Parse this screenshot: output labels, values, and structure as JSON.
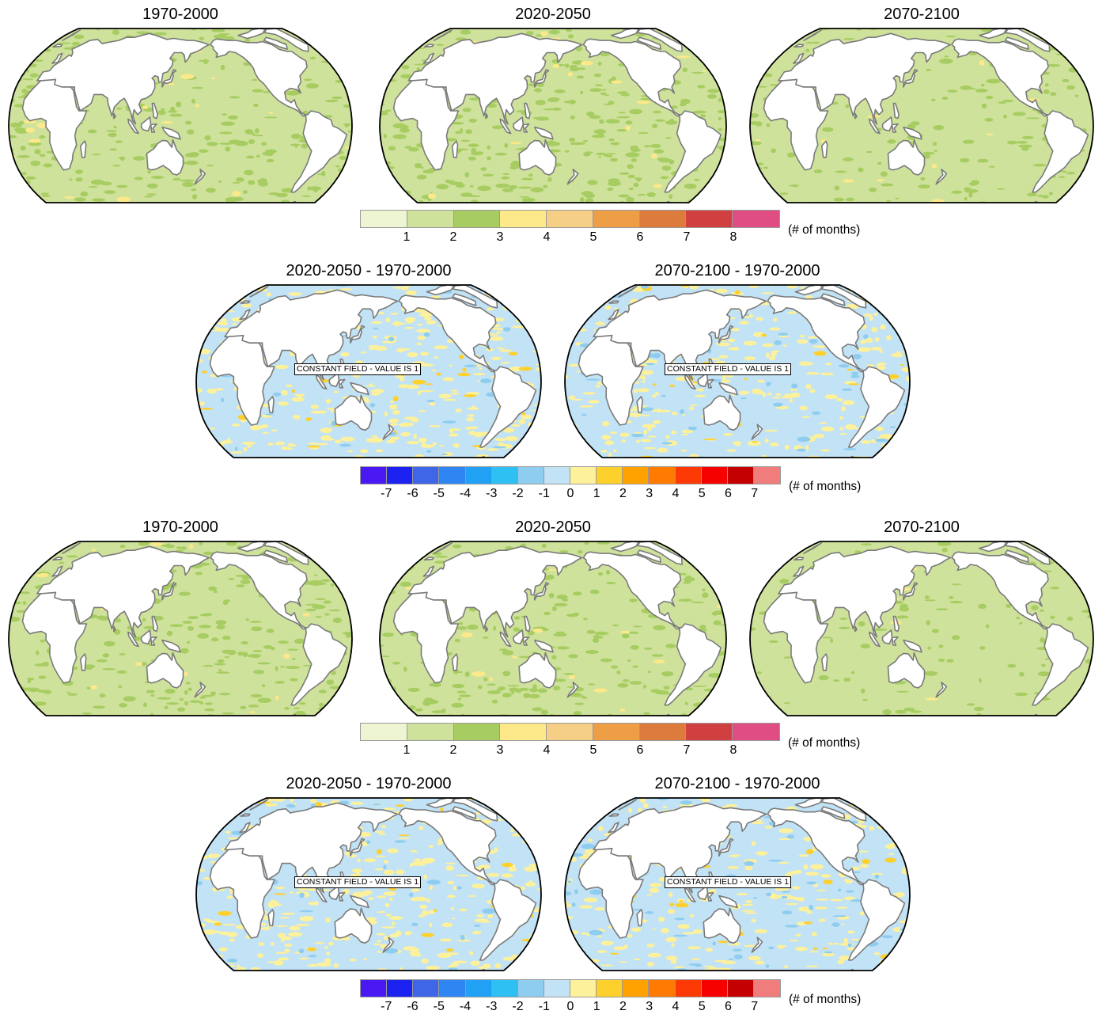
{
  "colors": {
    "land": "#ffffff",
    "coast": "#7a7a7a",
    "outline": "#000000"
  },
  "absolute_scale": {
    "colors": [
      "#eef5d2",
      "#cfe29c",
      "#a7cd62",
      "#fee98a",
      "#f6cf86",
      "#ee9f45",
      "#dc7b3c",
      "#d14040",
      "#e04d82"
    ],
    "ticks": [
      "1",
      "2",
      "3",
      "4",
      "5",
      "6",
      "7",
      "8"
    ],
    "units": "(# of months)"
  },
  "diff_scale": {
    "colors": [
      "#4a18f2",
      "#1c22ef",
      "#3f66e6",
      "#2f86f3",
      "#21a1f4",
      "#2fc0f3",
      "#8ecdef",
      "#c2e2f5",
      "#fef19b",
      "#fed02c",
      "#ffa200",
      "#ff7a00",
      "#fd3a05",
      "#f70000",
      "#c40000",
      "#f07c7c"
    ],
    "ticks": [
      "-7",
      "-6",
      "-5",
      "-4",
      "-3",
      "-2",
      "-1",
      "0",
      "1",
      "2",
      "3",
      "4",
      "5",
      "6",
      "7"
    ],
    "units": "(# of months)"
  },
  "constant_field_label": "CONSTANT FIELD - VALUE IS 1",
  "sections": [
    {
      "kind": "absolute",
      "panels": [
        {
          "title": "1970-2000",
          "ocean_base": "#cfe29c",
          "patches": [
            {
              "color": "#a7cd62",
              "share": 0.35
            },
            {
              "color": "#fee98a",
              "share": 0.03
            }
          ]
        },
        {
          "title": "2020-2050",
          "ocean_base": "#cfe29c",
          "patches": [
            {
              "color": "#a7cd62",
              "share": 0.4
            },
            {
              "color": "#fee98a",
              "share": 0.03
            }
          ]
        },
        {
          "title": "2070-2100",
          "ocean_base": "#cfe29c",
          "patches": [
            {
              "color": "#a7cd62",
              "share": 0.2
            },
            {
              "color": "#fee98a",
              "share": 0.02
            }
          ]
        }
      ]
    },
    {
      "kind": "difference",
      "panels": [
        {
          "title": "2020-2050 - 1970-2000",
          "ocean_base": "#c2e2f5",
          "patches": [
            {
              "color": "#fef19b",
              "share": 0.45
            },
            {
              "color": "#fed02c",
              "share": 0.04
            },
            {
              "color": "#8ecdef",
              "share": 0.05
            }
          ]
        },
        {
          "title": "2070-2100 - 1970-2000",
          "ocean_base": "#c2e2f5",
          "patches": [
            {
              "color": "#fef19b",
              "share": 0.4
            },
            {
              "color": "#fed02c",
              "share": 0.04
            },
            {
              "color": "#8ecdef",
              "share": 0.08
            }
          ]
        }
      ]
    },
    {
      "kind": "absolute",
      "panels": [
        {
          "title": "1970-2000",
          "ocean_base": "#cfe29c",
          "patches": [
            {
              "color": "#a7cd62",
              "share": 0.35
            },
            {
              "color": "#fee98a",
              "share": 0.02
            }
          ]
        },
        {
          "title": "2020-2050",
          "ocean_base": "#cfe29c",
          "patches": [
            {
              "color": "#a7cd62",
              "share": 0.3
            },
            {
              "color": "#fee98a",
              "share": 0.02
            }
          ]
        },
        {
          "title": "2070-2100",
          "ocean_base": "#cfe29c",
          "patches": [
            {
              "color": "#a7cd62",
              "share": 0.15
            },
            {
              "color": "#fee98a",
              "share": 0.01
            }
          ]
        }
      ]
    },
    {
      "kind": "difference",
      "panels": [
        {
          "title": "2020-2050 - 1970-2000",
          "ocean_base": "#c2e2f5",
          "patches": [
            {
              "color": "#fef19b",
              "share": 0.45
            },
            {
              "color": "#fed02c",
              "share": 0.03
            },
            {
              "color": "#8ecdef",
              "share": 0.04
            }
          ]
        },
        {
          "title": "2070-2100 - 1970-2000",
          "ocean_base": "#c2e2f5",
          "patches": [
            {
              "color": "#fef19b",
              "share": 0.35
            },
            {
              "color": "#fed02c",
              "share": 0.03
            },
            {
              "color": "#8ecdef",
              "share": 0.08
            }
          ]
        }
      ]
    }
  ]
}
